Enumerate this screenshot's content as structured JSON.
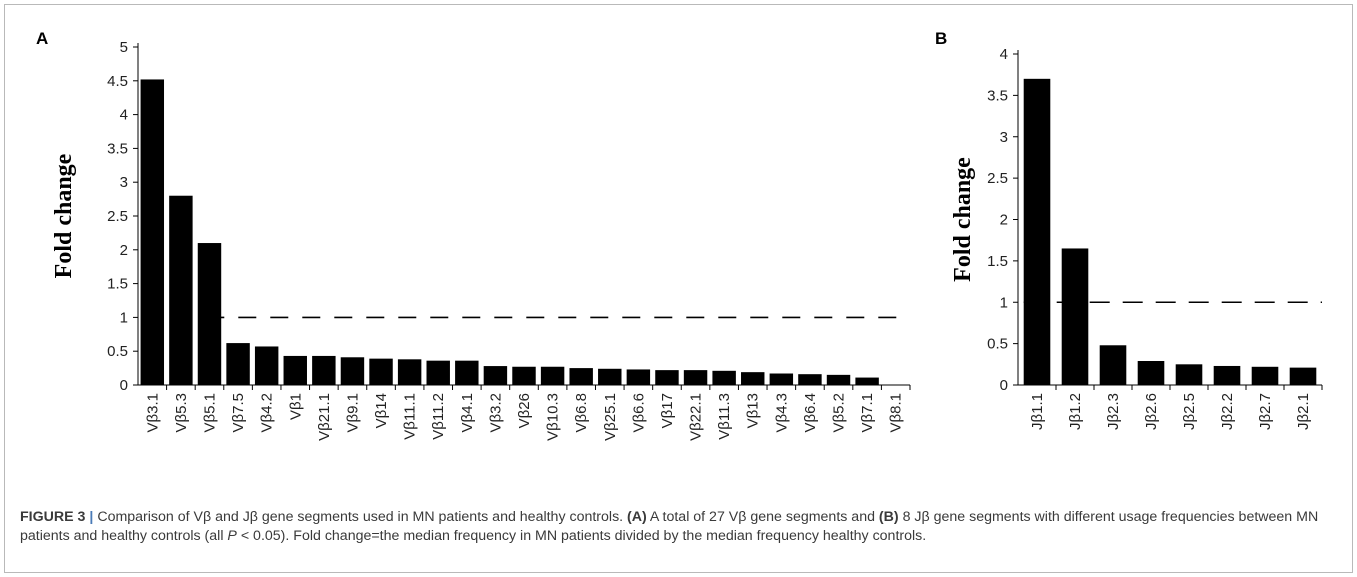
{
  "chart_data": [
    {
      "panel": "A",
      "type": "bar",
      "ylabel": "Fold change",
      "ylim": [
        0,
        5
      ],
      "yticks": [
        "0",
        "0.5",
        "1",
        "1.5",
        "2",
        "2.5",
        "3",
        "3.5",
        "4",
        "4.5",
        "5"
      ],
      "reference_line": 1,
      "bar_color": "#000000",
      "categories": [
        "Vβ3.1",
        "Vβ5.3",
        "Vβ5.1",
        "Vβ7.5",
        "Vβ4.2",
        "Vβ1",
        "Vβ21.1",
        "Vβ9.1",
        "Vβ14",
        "Vβ11.1",
        "Vβ11.2",
        "Vβ4.1",
        "Vβ3.2",
        "Vβ26",
        "Vβ10.3",
        "Vβ6.8",
        "Vβ25.1",
        "Vβ6.6",
        "Vβ17",
        "Vβ22.1",
        "Vβ11.3",
        "Vβ13",
        "Vβ4.3",
        "Vβ6.4",
        "Vβ5.2",
        "Vβ7.1",
        "Vβ8.1"
      ],
      "values": [
        4.52,
        2.8,
        2.1,
        0.62,
        0.57,
        0.43,
        0.43,
        0.41,
        0.39,
        0.38,
        0.36,
        0.36,
        0.28,
        0.27,
        0.27,
        0.25,
        0.24,
        0.23,
        0.22,
        0.22,
        0.21,
        0.19,
        0.17,
        0.16,
        0.15,
        0.11,
        0.0
      ]
    },
    {
      "panel": "B",
      "type": "bar",
      "ylabel": "Fold change",
      "ylim": [
        0,
        4
      ],
      "yticks": [
        "0",
        "0.5",
        "1",
        "1.5",
        "2",
        "2.5",
        "3",
        "3.5",
        "4"
      ],
      "reference_line": 1,
      "bar_color": "#000000",
      "categories": [
        "Jβ1.1",
        "Jβ1.2",
        "Jβ2.3",
        "Jβ2.6",
        "Jβ2.5",
        "Jβ2.2",
        "Jβ2.7",
        "Jβ2.1"
      ],
      "values": [
        3.7,
        1.65,
        0.48,
        0.29,
        0.25,
        0.23,
        0.22,
        0.21
      ]
    }
  ],
  "caption": {
    "label": "FIGURE 3",
    "separator": "|",
    "text_1": " Comparison of Vβ and Jβ gene segments used in MN patients and healthy controls. ",
    "tag_a": "(A)",
    "text_2": " A total of 27 Vβ gene segments and ",
    "tag_b": "(B)",
    "text_3": " 8 Jβ gene segments with different usage frequencies between MN patients and healthy controls (all ",
    "p_symbol": "P",
    "text_4": " < 0.05). Fold change=the median frequency in MN patients divided by the median frequency healthy controls."
  }
}
